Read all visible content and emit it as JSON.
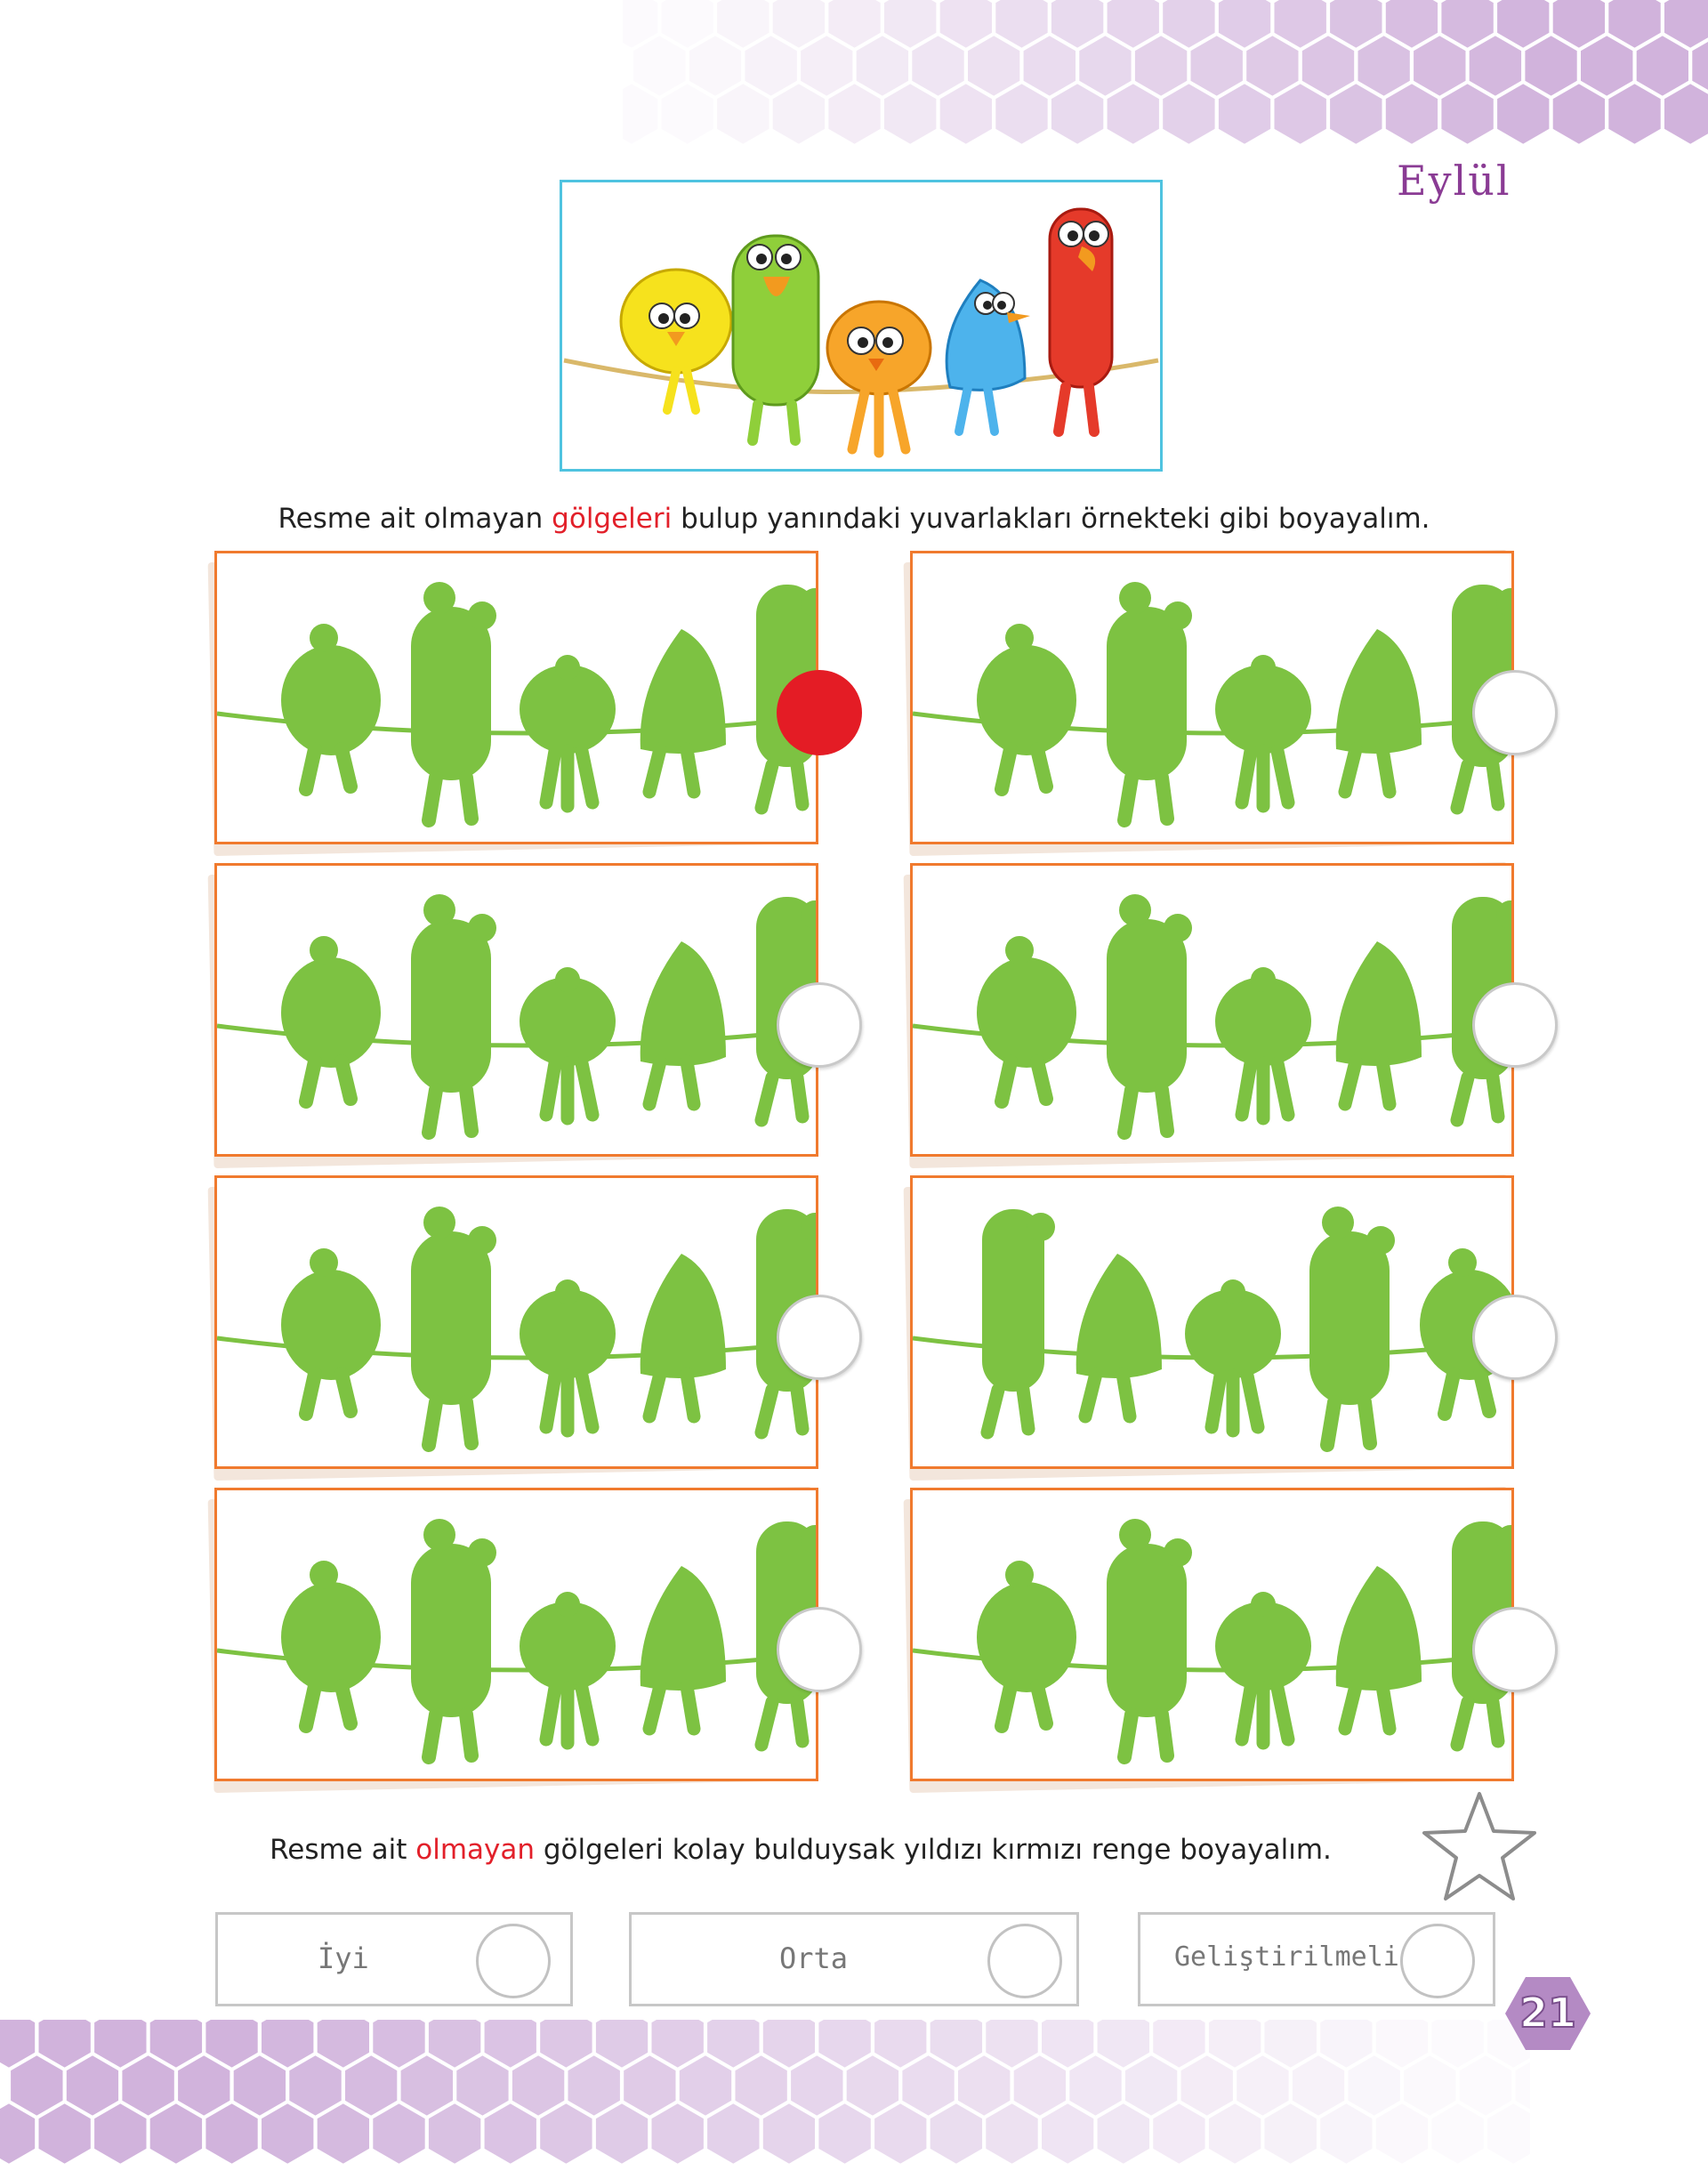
{
  "header": {
    "month": "Eylül"
  },
  "instructions": {
    "main_before": "Resme ait olmayan ",
    "main_highlight": "gölgeleri",
    "main_after": " bulup yanındaki yuvarlakları örnekteki gibi boyayalım.",
    "self_before": "Resme ait ",
    "self_highlight": "olmayan",
    "self_after": " gölgeleri kolay bulduysak yıldızı kırmızı renge boyayalım."
  },
  "hero": {
    "birds": [
      "yellow-bird",
      "green-bird",
      "orange-bird",
      "blue-bird",
      "red-bird"
    ]
  },
  "panels": [
    {
      "order": [
        "round",
        "tall",
        "small",
        "pointy",
        "slim"
      ],
      "marked": true
    },
    {
      "order": [
        "round",
        "tall",
        "small",
        "pointy",
        "slim"
      ],
      "marked": false
    },
    {
      "order": [
        "round",
        "tall",
        "small",
        "pointy",
        "slim"
      ],
      "marked": false
    },
    {
      "order": [
        "round",
        "tall",
        "small",
        "pointy",
        "slim"
      ],
      "marked": false
    },
    {
      "order": [
        "round",
        "tall",
        "small",
        "pointy",
        "slim"
      ],
      "marked": false
    },
    {
      "order": [
        "slim",
        "pointy",
        "small",
        "tall",
        "round"
      ],
      "marked": false
    },
    {
      "order": [
        "round",
        "tall",
        "small",
        "pointy",
        "slim"
      ],
      "marked": false
    },
    {
      "order": [
        "round",
        "tall",
        "small",
        "pointy",
        "slim"
      ],
      "marked": false
    }
  ],
  "ratings": {
    "good": "İyi",
    "medium": "Orta",
    "improve": "Geliştirilmeli"
  },
  "page_number": "21",
  "colors": {
    "silhouette": "#7dc242",
    "panel_border": "#f07a2e",
    "marked_circle": "#e41c25",
    "hexagon": "#c9a6d6",
    "month_text": "#8a3b94"
  },
  "icons": [
    "star-outline-icon",
    "hexagon-pattern-icon"
  ]
}
